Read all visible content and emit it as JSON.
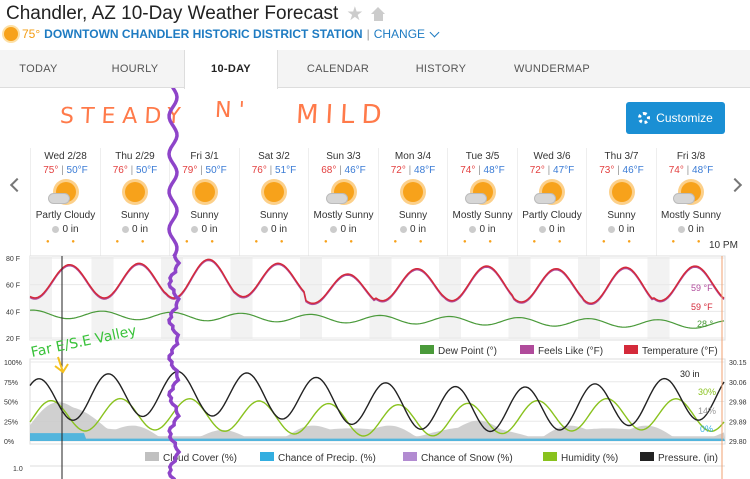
{
  "header": {
    "title": "Chandler, AZ 10-Day Weather Forecast",
    "current_temp": "75°",
    "station": "DOWNTOWN CHANDLER HISTORIC DISTRICT STATION",
    "divider": "|",
    "change_label": "CHANGE"
  },
  "tabs": [
    {
      "label": "TODAY",
      "active": false
    },
    {
      "label": "HOURLY",
      "active": false
    },
    {
      "label": "10-DAY",
      "active": true
    },
    {
      "label": "CALENDAR",
      "active": false
    },
    {
      "label": "HISTORY",
      "active": false
    },
    {
      "label": "WUNDERMAP",
      "active": false
    }
  ],
  "annotations": {
    "top_left": "STEADY",
    "top_mid": "N'",
    "top_right": "MILD",
    "chart_note": "Far E/S.E Valley"
  },
  "customize_label": "Customize",
  "days": [
    {
      "date": "Wed 2/28",
      "hi": "75°",
      "lo": "50°F",
      "cond": "Partly Cloudy",
      "precip": "0 in",
      "icon": "partly-cloudy-icon"
    },
    {
      "date": "Thu 2/29",
      "hi": "76°",
      "lo": "50°F",
      "cond": "Sunny",
      "precip": "0 in",
      "icon": "sunny-icon"
    },
    {
      "date": "Fri 3/1",
      "hi": "79°",
      "lo": "50°F",
      "cond": "Sunny",
      "precip": "0 in",
      "icon": "sunny-icon"
    },
    {
      "date": "Sat 3/2",
      "hi": "76°",
      "lo": "51°F",
      "cond": "Sunny",
      "precip": "0 in",
      "icon": "sunny-icon"
    },
    {
      "date": "Sun 3/3",
      "hi": "68°",
      "lo": "46°F",
      "cond": "Mostly Sunny",
      "precip": "0 in",
      "icon": "mostly-sunny-icon"
    },
    {
      "date": "Mon 3/4",
      "hi": "72°",
      "lo": "48°F",
      "cond": "Sunny",
      "precip": "0 in",
      "icon": "sunny-icon"
    },
    {
      "date": "Tue 3/5",
      "hi": "74°",
      "lo": "48°F",
      "cond": "Mostly Sunny",
      "precip": "0 in",
      "icon": "mostly-sunny-icon"
    },
    {
      "date": "Wed 3/6",
      "hi": "72°",
      "lo": "47°F",
      "cond": "Partly Cloudy",
      "precip": "0 in",
      "icon": "partly-cloudy-icon"
    },
    {
      "date": "Thu 3/7",
      "hi": "73°",
      "lo": "46°F",
      "cond": "Sunny",
      "precip": "0 in",
      "icon": "sunny-icon"
    },
    {
      "date": "Fri 3/8",
      "hi": "74°",
      "lo": "48°F",
      "cond": "Mostly Sunny",
      "precip": "0 in",
      "icon": "mostly-sunny-icon"
    }
  ],
  "time_label": "10 PM",
  "chart_data": [
    {
      "type": "line",
      "yticks": [
        "80 F",
        "60 F",
        "40 F",
        "20 F"
      ],
      "ylim": [
        20,
        80
      ],
      "current_values": {
        "feels_like": "59 °F",
        "temperature": "59 °F",
        "dew_point": "28 °"
      },
      "legend": [
        "Dew Point (°)",
        "Feels Like (°F)",
        "Temperature (°F)"
      ],
      "colors": {
        "dew_point": "#4a9a3a",
        "feels_like": "#b04b9b",
        "temperature": "#d42a3a"
      }
    },
    {
      "type": "line",
      "yticks_left": [
        "100%",
        "75%",
        "50%",
        "25%",
        "0%"
      ],
      "yticks_right": [
        "30.15",
        "30.06",
        "29.98",
        "29.89",
        "29.80"
      ],
      "ylim": [
        0,
        100
      ],
      "pressure_range": [
        29.8,
        30.15
      ],
      "current_values": {
        "pressure": "30 in",
        "humidity": "30%",
        "cloud_cover": "14%",
        "precip": "0%"
      },
      "legend": [
        "Cloud Cover (%)",
        "Chance of Precip. (%)",
        "Chance of Snow (%)",
        "Humidity (%)",
        "Pressure. (in)"
      ],
      "colors": {
        "cloud": "#c0c0c0",
        "precip": "#33aee0",
        "snow": "#b28bd1",
        "humidity": "#89c21e",
        "pressure": "#222222"
      }
    }
  ],
  "bottom_tick": "1.0"
}
